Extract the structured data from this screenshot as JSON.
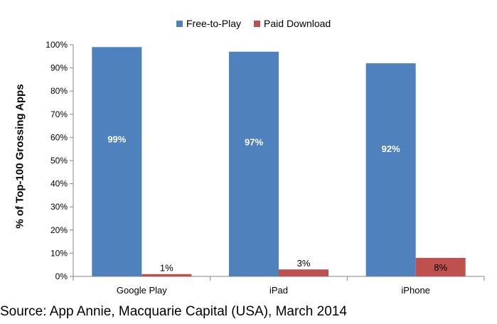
{
  "chart_data": {
    "type": "bar",
    "categories": [
      "Google Play",
      "iPad",
      "iPhone"
    ],
    "series": [
      {
        "name": "Free-to-Play",
        "values": [
          99,
          97,
          92
        ],
        "labels": [
          "99%",
          "97%",
          "92%"
        ],
        "color": "#4f81bd"
      },
      {
        "name": "Paid Download",
        "values": [
          1,
          3,
          8
        ],
        "labels": [
          "1%",
          "3%",
          "8%"
        ],
        "color": "#c0504d"
      }
    ],
    "ylabel": "% of Top-100 Grossing Apps",
    "ylim": [
      0,
      100
    ],
    "yticks": [
      "0%",
      "10%",
      "20%",
      "30%",
      "40%",
      "50%",
      "60%",
      "70%",
      "80%",
      "90%",
      "100%"
    ],
    "grid": false,
    "legend": "top-center"
  },
  "source": "Source: App Annie, Macquarie Capital (USA), March 2014"
}
